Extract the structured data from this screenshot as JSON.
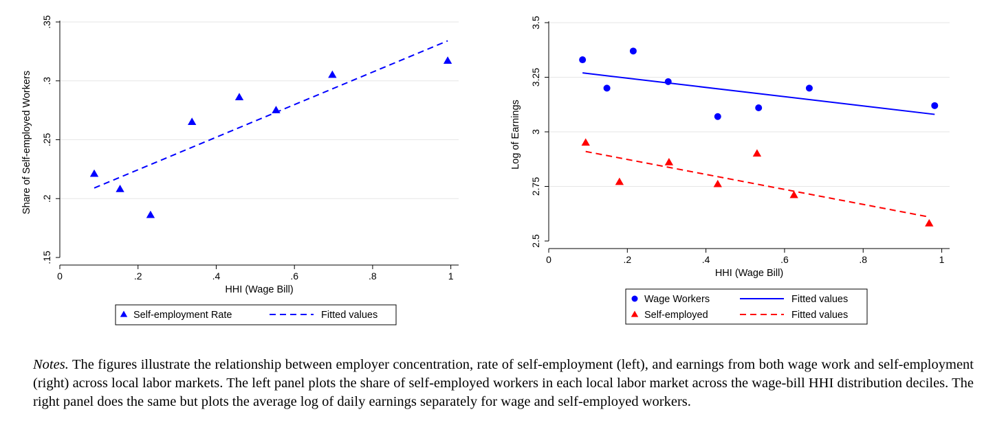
{
  "chart_data": [
    {
      "type": "scatter",
      "xlabel": "HHI (Wage Bill)",
      "ylabel": "Share of Self-employed Workers",
      "xlim": [
        0,
        1.02
      ],
      "ylim": [
        0.15,
        0.35
      ],
      "xticks": [
        0,
        0.2,
        0.4,
        0.6,
        0.8,
        1
      ],
      "xtick_labels": [
        "0",
        ".2",
        ".4",
        ".6",
        ".8",
        "1"
      ],
      "yticks": [
        0.15,
        0.2,
        0.25,
        0.3,
        0.35
      ],
      "ytick_labels": [
        ".15",
        ".2",
        ".25",
        ".3",
        ".35"
      ],
      "grid": "horizontal",
      "legend_position": "bottom",
      "series": [
        {
          "name": "Self-employment Rate",
          "kind": "points",
          "marker": "triangle",
          "color": "#0000ff",
          "points": [
            [
              0.088,
              0.221
            ],
            [
              0.154,
              0.208
            ],
            [
              0.232,
              0.186
            ],
            [
              0.338,
              0.265
            ],
            [
              0.459,
              0.286
            ],
            [
              0.553,
              0.275
            ],
            [
              0.697,
              0.305
            ],
            [
              0.992,
              0.317
            ]
          ]
        },
        {
          "name": "Fitted values",
          "kind": "line",
          "dash": "dashed",
          "color": "#0000ff",
          "points": [
            [
              0.088,
              0.209
            ],
            [
              0.992,
              0.334
            ]
          ]
        }
      ]
    },
    {
      "type": "scatter",
      "xlabel": "HHI (Wage Bill)",
      "ylabel": "Log of Earnings",
      "xlim": [
        0,
        1.02
      ],
      "ylim": [
        2.5,
        3.5
      ],
      "xticks": [
        0,
        0.2,
        0.4,
        0.6,
        0.8,
        1
      ],
      "xtick_labels": [
        "0",
        ".2",
        ".4",
        ".6",
        ".8",
        "1"
      ],
      "yticks": [
        2.5,
        2.75,
        3,
        3.25,
        3.5
      ],
      "ytick_labels": [
        "2.5",
        "2.75",
        "3",
        "3.25",
        "3.5"
      ],
      "grid": "horizontal",
      "legend_position": "bottom",
      "series": [
        {
          "name": "Wage Workers",
          "kind": "points",
          "marker": "circle",
          "color": "#0000ff",
          "points": [
            [
              0.086,
              3.33
            ],
            [
              0.148,
              3.2
            ],
            [
              0.215,
              3.37
            ],
            [
              0.304,
              3.23
            ],
            [
              0.43,
              3.07
            ],
            [
              0.534,
              3.11
            ],
            [
              0.663,
              3.2
            ],
            [
              0.982,
              3.12
            ]
          ]
        },
        {
          "name": "Fitted values",
          "kind": "line",
          "dash": "solid",
          "color": "#0000ff",
          "points": [
            [
              0.086,
              3.27
            ],
            [
              0.982,
              3.08
            ]
          ]
        },
        {
          "name": "Self-employed",
          "kind": "points",
          "marker": "triangle",
          "color": "#ff0000",
          "points": [
            [
              0.094,
              2.95
            ],
            [
              0.18,
              2.77
            ],
            [
              0.306,
              2.86
            ],
            [
              0.43,
              2.76
            ],
            [
              0.53,
              2.9
            ],
            [
              0.624,
              2.71
            ],
            [
              0.968,
              2.58
            ]
          ]
        },
        {
          "name": "Fitted values",
          "kind": "line",
          "dash": "dashed",
          "color": "#ff0000",
          "points": [
            [
              0.094,
              2.91
            ],
            [
              0.968,
              2.61
            ]
          ]
        }
      ]
    }
  ],
  "notes": {
    "lead": "Notes.",
    "text": " The figures illustrate the relationship between employer concentration, rate of self-employment (left), and earnings from both wage work and self-employment (right) across local labor markets. The left panel plots the share of self-employed workers in each local labor market across the wage-bill HHI distribution deciles. The right panel does the same but plots the average log of daily earnings separately for wage and self-employed workers."
  }
}
